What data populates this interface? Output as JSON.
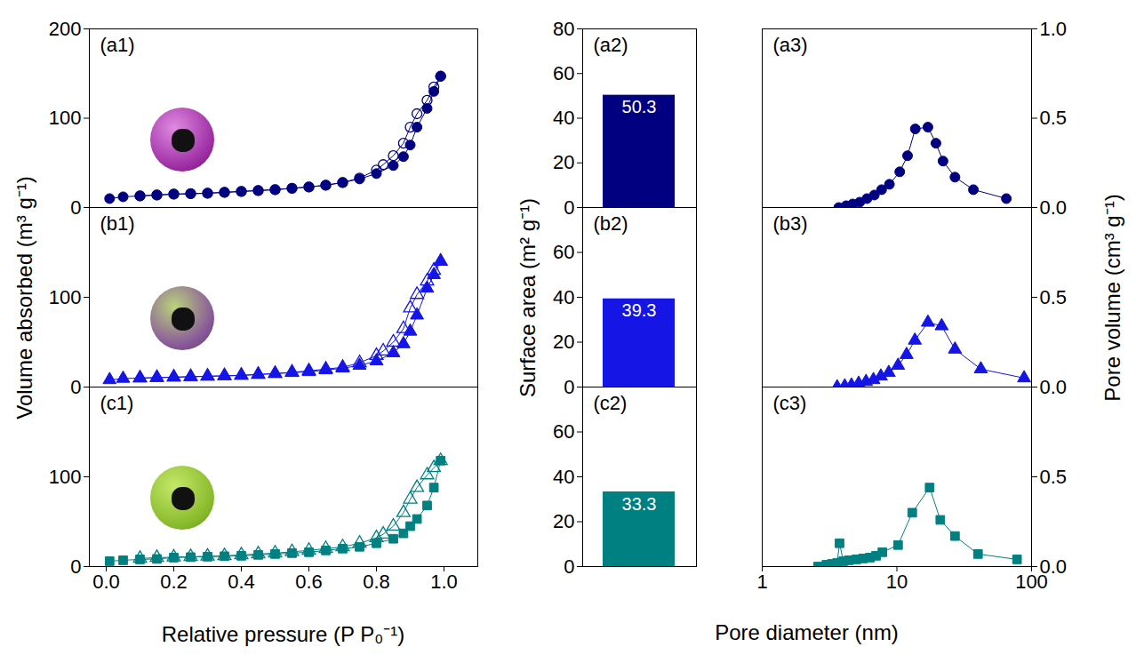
{
  "chart_data": [
    {
      "type": "line",
      "title": "(a1)",
      "xlim": [
        -0.05,
        1.1
      ],
      "ylim": [
        0,
        200
      ],
      "yticks": [
        0,
        100,
        200
      ],
      "tick_labels": "y",
      "series": [
        {
          "color": "#000080",
          "marker": "circle",
          "x": [
            0.01,
            0.05,
            0.1,
            0.15,
            0.2,
            0.25,
            0.3,
            0.35,
            0.4,
            0.45,
            0.5,
            0.55,
            0.6,
            0.65,
            0.7,
            0.75,
            0.8,
            0.85,
            0.88,
            0.9,
            0.92,
            0.95,
            0.97,
            0.99
          ],
          "values": [
            10,
            12,
            13,
            14,
            15,
            15.5,
            16,
            17,
            18,
            19,
            20,
            21.5,
            23,
            25,
            28,
            32,
            38,
            47,
            57,
            70,
            90,
            111,
            130,
            147
          ]
        },
        {
          "color": "#000080",
          "marker": "circle-open",
          "x": [
            0.99,
            0.97,
            0.95,
            0.92,
            0.9,
            0.88,
            0.85,
            0.82,
            0.8,
            0.75,
            0.7,
            0.65,
            0.6,
            0.55,
            0.5,
            0.45,
            0.4,
            0.35,
            0.3,
            0.25,
            0.2,
            0.15,
            0.1
          ],
          "values": [
            147,
            135,
            120,
            105,
            90,
            72,
            58,
            48,
            42,
            33,
            28,
            25,
            23,
            21.5,
            20,
            19,
            18,
            17,
            16,
            15.5,
            15,
            14,
            13
          ]
        }
      ]
    },
    {
      "type": "bar",
      "title": "(a2)",
      "categories": [
        null
      ],
      "values": [
        50.3
      ],
      "color": "#000080",
      "ylim": [
        0,
        80
      ],
      "yticks": [
        0,
        20,
        40,
        60,
        80
      ],
      "data_labels": true,
      "tick_labels": "y"
    },
    {
      "type": "line",
      "title": "(a3)",
      "log": "x",
      "xlim": [
        1,
        100
      ],
      "ylim": [
        0,
        1.0
      ],
      "yticks": [
        {
          "value": 0,
          "label": "0.0"
        },
        {
          "value": 0.5,
          "label": "0.5"
        },
        {
          "value": 1.0,
          "label": "1.0"
        }
      ],
      "tick_labels": "y",
      "series": [
        {
          "color": "#000080",
          "marker": "circle",
          "x": [
            3.7,
            4.2,
            4.7,
            5.3,
            6,
            6.8,
            7.7,
            8.8,
            10.5,
            12,
            13.7,
            17,
            19.5,
            22,
            27,
            37,
            65
          ],
          "values": [
            0.0,
            0.01,
            0.02,
            0.03,
            0.05,
            0.07,
            0.1,
            0.13,
            0.2,
            0.29,
            0.44,
            0.45,
            0.36,
            0.26,
            0.17,
            0.1,
            0.05
          ]
        }
      ]
    },
    {
      "type": "line",
      "title": "(b1)",
      "ylabel": "Volume absorbed (m³ g⁻¹)",
      "xlim": [
        -0.05,
        1.1
      ],
      "ylim": [
        0,
        200
      ],
      "yticks": [
        0,
        100
      ],
      "tick_labels": "y",
      "series": [
        {
          "color": "#1515e6",
          "marker": "triangle",
          "x": [
            0.01,
            0.05,
            0.1,
            0.15,
            0.2,
            0.25,
            0.3,
            0.35,
            0.4,
            0.45,
            0.5,
            0.55,
            0.6,
            0.65,
            0.7,
            0.75,
            0.8,
            0.85,
            0.88,
            0.9,
            0.92,
            0.95,
            0.97,
            0.99
          ],
          "values": [
            8,
            9.5,
            10,
            10.5,
            11,
            11.5,
            12,
            12.5,
            13,
            14,
            15,
            16,
            17,
            19,
            21,
            24,
            29,
            38,
            48,
            62,
            80,
            110,
            125,
            140
          ]
        },
        {
          "color": "#1515e6",
          "marker": "triangle-open",
          "x": [
            0.99,
            0.97,
            0.95,
            0.92,
            0.9,
            0.88,
            0.85,
            0.82,
            0.8,
            0.75,
            0.7,
            0.65,
            0.6,
            0.55,
            0.5,
            0.45,
            0.4,
            0.35,
            0.3,
            0.25,
            0.2,
            0.15,
            0.1
          ],
          "values": [
            140,
            130,
            118,
            103,
            88,
            65,
            50,
            40,
            35,
            27,
            22,
            20,
            18,
            16.5,
            15,
            14,
            13,
            12.5,
            12,
            11.5,
            11,
            10.5,
            10
          ]
        }
      ]
    },
    {
      "type": "bar",
      "title": "(b2)",
      "ylabel": "Surface area (m² g⁻¹)",
      "categories": [
        null
      ],
      "values": [
        39.3
      ],
      "color": "#1515e6",
      "ylim": [
        0,
        80
      ],
      "yticks": [
        0,
        20,
        40,
        60
      ],
      "data_labels": true,
      "tick_labels": "y"
    },
    {
      "type": "line",
      "title": "(b3)",
      "ylabel": "Pore volume (cm³ g⁻¹)",
      "log": "x",
      "xlim": [
        1,
        100
      ],
      "ylim": [
        0,
        1.0
      ],
      "yticks": [
        {
          "value": 0,
          "label": "0.0"
        },
        {
          "value": 0.5,
          "label": "0.5"
        }
      ],
      "tick_labels": "y",
      "series": [
        {
          "color": "#1515e6",
          "marker": "triangle",
          "x": [
            3.6,
            4.1,
            4.6,
            5.2,
            5.9,
            6.7,
            7.6,
            8.7,
            10.2,
            11.8,
            13.6,
            17,
            21.5,
            27,
            42,
            88
          ],
          "values": [
            0.0,
            0.005,
            0.01,
            0.02,
            0.03,
            0.04,
            0.06,
            0.08,
            0.12,
            0.18,
            0.26,
            0.36,
            0.34,
            0.21,
            0.1,
            0.05
          ]
        }
      ]
    },
    {
      "type": "line",
      "title": "(c1)",
      "xlabel": "Relative pressure (P P₀⁻¹)",
      "xlim": [
        -0.05,
        1.1
      ],
      "ylim": [
        0,
        200
      ],
      "yticks": [
        0,
        100
      ],
      "xticks": [
        {
          "value": 0,
          "label": "0.0"
        },
        {
          "value": 0.2,
          "label": "0.2"
        },
        {
          "value": 0.4,
          "label": "0.4"
        },
        {
          "value": 0.6,
          "label": "0.6"
        },
        {
          "value": 0.8,
          "label": "0.8"
        },
        {
          "value": 1.0,
          "label": "1.0"
        }
      ],
      "series": [
        {
          "color": "#008080",
          "marker": "square",
          "x": [
            0.01,
            0.05,
            0.1,
            0.15,
            0.2,
            0.25,
            0.3,
            0.35,
            0.4,
            0.45,
            0.5,
            0.55,
            0.6,
            0.65,
            0.7,
            0.75,
            0.8,
            0.85,
            0.88,
            0.9,
            0.92,
            0.95,
            0.97,
            0.99
          ],
          "values": [
            6,
            7,
            8,
            8.5,
            10,
            10.5,
            11,
            11.5,
            12,
            13,
            14,
            15,
            16,
            18,
            20,
            22,
            26,
            31,
            37,
            45,
            53,
            68,
            88,
            118
          ]
        },
        {
          "color": "#008080",
          "marker": "triangle-open",
          "x": [
            0.99,
            0.97,
            0.95,
            0.92,
            0.9,
            0.88,
            0.85,
            0.82,
            0.8,
            0.75,
            0.7,
            0.65,
            0.6,
            0.55,
            0.5,
            0.45,
            0.4,
            0.35,
            0.3,
            0.25,
            0.2,
            0.15,
            0.1
          ],
          "values": [
            118,
            110,
            102,
            88,
            75,
            60,
            45,
            36,
            32,
            26,
            22,
            20,
            18,
            16.5,
            15,
            14,
            13,
            12,
            11.5,
            11,
            10.5,
            10,
            9
          ]
        }
      ]
    },
    {
      "type": "bar",
      "title": "(c2)",
      "categories": [
        null
      ],
      "values": [
        33.3
      ],
      "color": "#008080",
      "ylim": [
        0,
        80
      ],
      "yticks": [
        0,
        20,
        40,
        60
      ],
      "data_labels": true,
      "tick_labels": "y"
    },
    {
      "type": "line",
      "title": "(c3)",
      "xlabel": "Pore diameter (nm)",
      "log": "x",
      "xlim": [
        1,
        100
      ],
      "xticks": [
        1,
        10,
        100
      ],
      "ylim": [
        0,
        1.0
      ],
      "yticks": [
        {
          "value": 0,
          "label": "0.0"
        },
        {
          "value": 0.5,
          "label": "0.5"
        }
      ],
      "series": [
        {
          "color": "#008080",
          "marker": "square",
          "x": [
            2.6,
            3.0,
            3.3,
            3.6,
            3.75,
            4.0,
            4.4,
            5.0,
            5.6,
            6.3,
            7.0,
            7.8,
            10.2,
            13,
            17.5,
            21,
            27,
            40,
            78
          ],
          "values": [
            0.0,
            0.01,
            0.015,
            0.02,
            0.13,
            0.03,
            0.035,
            0.04,
            0.045,
            0.05,
            0.06,
            0.08,
            0.12,
            0.3,
            0.44,
            0.26,
            0.17,
            0.07,
            0.04
          ]
        }
      ]
    }
  ]
}
